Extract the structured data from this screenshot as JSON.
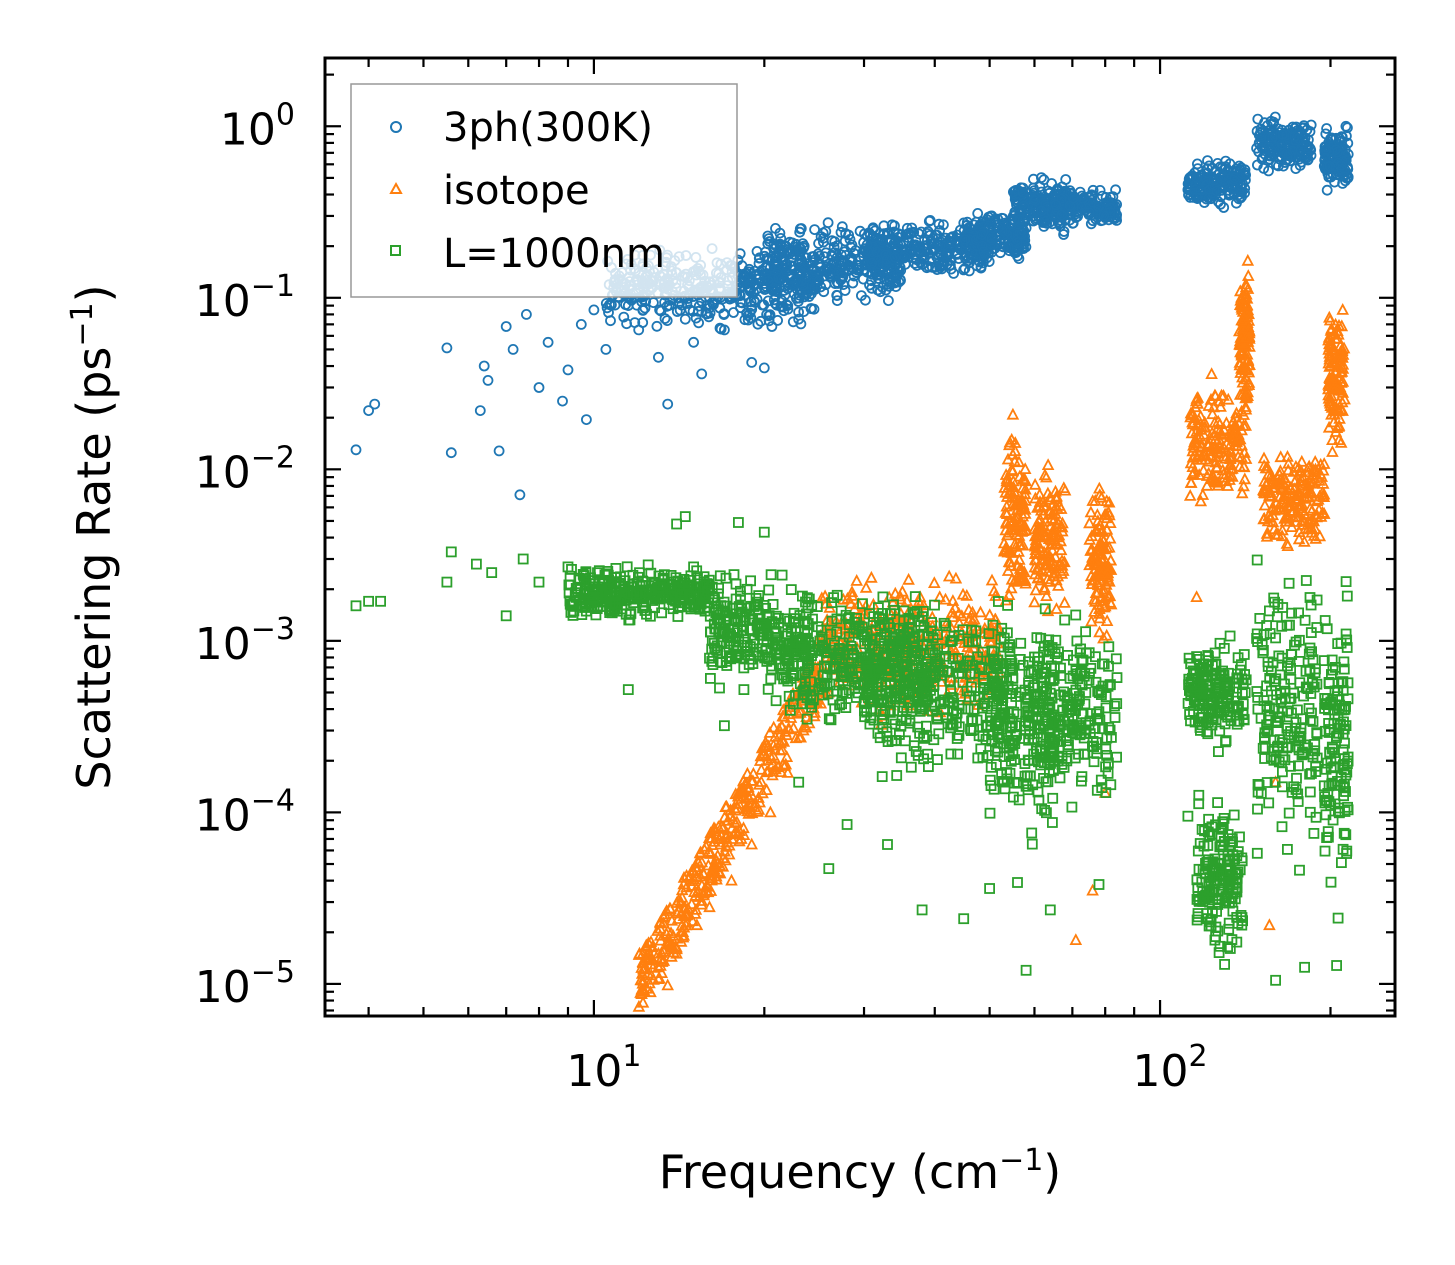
{
  "chart_data": {
    "type": "scatter",
    "title": "",
    "xlabel": "Frequency (cm",
    "xlabel_sup": "−1",
    "xlabel_end": ")",
    "ylabel": "Scattering Rate (ps",
    "ylabel_sup": "−1",
    "ylabel_end": ")",
    "xscale": "log",
    "yscale": "log",
    "xlim": [
      3.35,
      260
    ],
    "ylim": [
      6.5e-06,
      2.5
    ],
    "x_ticks": [
      {
        "value": 10,
        "base": "10",
        "exp": "1"
      },
      {
        "value": 100,
        "base": "10",
        "exp": "2"
      }
    ],
    "y_ticks": [
      {
        "value": 1,
        "base": "10",
        "exp": "0"
      },
      {
        "value": 0.1,
        "base": "10",
        "exp": "−1"
      },
      {
        "value": 0.01,
        "base": "10",
        "exp": "−2"
      },
      {
        "value": 0.001,
        "base": "10",
        "exp": "−3"
      },
      {
        "value": 0.0001,
        "base": "10",
        "exp": "−4"
      },
      {
        "value": 1e-05,
        "base": "10",
        "exp": "−5"
      }
    ],
    "legend_position": "top-left",
    "series": [
      {
        "name": "3ph(300K)",
        "marker": "circle",
        "color": "#1f77b4",
        "points": [
          [
            3.8,
            0.013
          ],
          [
            4.0,
            0.022
          ],
          [
            4.1,
            0.024
          ],
          [
            5.5,
            0.051
          ],
          [
            5.6,
            0.0125
          ],
          [
            6.3,
            0.022
          ],
          [
            6.4,
            0.04
          ],
          [
            6.5,
            0.033
          ],
          [
            6.8,
            0.0128
          ],
          [
            7.0,
            0.068
          ],
          [
            7.2,
            0.05
          ],
          [
            7.4,
            0.0071
          ],
          [
            7.6,
            0.08
          ],
          [
            8.0,
            0.03
          ],
          [
            8.3,
            0.055
          ],
          [
            8.8,
            0.025
          ],
          [
            9.0,
            0.038
          ],
          [
            9.5,
            0.07
          ],
          [
            9.7,
            0.0195
          ],
          [
            10.0,
            0.085
          ],
          [
            10.5,
            0.05
          ],
          [
            11.0,
            0.12
          ],
          [
            11.5,
            0.09
          ],
          [
            12.0,
            0.065
          ],
          [
            12.5,
            0.11
          ],
          [
            13.0,
            0.045
          ],
          [
            13.5,
            0.024
          ],
          [
            14.0,
            0.14
          ],
          [
            14.5,
            0.075
          ],
          [
            15.0,
            0.055
          ],
          [
            15.5,
            0.036
          ],
          [
            16.0,
            0.1
          ],
          [
            16.5,
            0.16
          ],
          [
            17.0,
            0.065
          ],
          [
            18.0,
            0.12
          ],
          [
            19.0,
            0.042
          ],
          [
            20.0,
            0.039
          ],
          [
            20.5,
            0.15
          ],
          [
            21.0,
            0.2
          ],
          [
            22.0,
            0.09
          ],
          [
            23.0,
            0.075
          ]
        ],
        "bands": [
          {
            "x": [
              10.5,
              25
            ],
            "y": [
              0.06,
              0.22
            ]
          },
          {
            "x": [
              20,
              35
            ],
            "y": [
              0.08,
              0.3
            ]
          },
          {
            "x": [
              30,
              50
            ],
            "y": [
              0.12,
              0.3
            ]
          },
          {
            "x": [
              45,
              58
            ],
            "y": [
              0.15,
              0.35
            ]
          },
          {
            "x": [
              55,
              70
            ],
            "y": [
              0.22,
              0.55
            ]
          },
          {
            "x": [
              65,
              84
            ],
            "y": [
              0.25,
              0.45
            ]
          },
          {
            "x": [
              112,
              142
            ],
            "y": [
              0.32,
              0.7
            ]
          },
          {
            "x": [
              148,
              185
            ],
            "y": [
              0.5,
              1.2
            ]
          },
          {
            "x": [
              195,
              215
            ],
            "y": [
              0.38,
              1.1
            ]
          }
        ]
      },
      {
        "name": "isotope",
        "marker": "triangle",
        "color": "#ff7f0e",
        "points": [
          [
            12.1,
            1.05e-05
          ],
          [
            13.0,
            1.25e-05
          ],
          [
            13.5,
            9.8e-06
          ],
          [
            14.0,
            1.5e-05
          ],
          [
            15.2,
            2.2e-05
          ],
          [
            16.0,
            2.8e-05
          ],
          [
            17.5,
            4e-05
          ],
          [
            19.0,
            6.5e-05
          ],
          [
            20.5,
            0.0001
          ],
          [
            22.0,
            0.00017
          ],
          [
            24.0,
            0.00033
          ],
          [
            26.0,
            0.0005
          ],
          [
            71.0,
            1.8e-05
          ],
          [
            76.0,
            3.5e-05
          ],
          [
            80.0,
            0.00013
          ],
          [
            156.0,
            2.2e-05
          ],
          [
            160.0,
            0.00015
          ],
          [
            116.0,
            0.0018
          ],
          [
            118.0,
            0.0065
          ]
        ],
        "bands": [
          {
            "x": [
              12,
              25
            ],
            "y": [
              1e-05,
              0.0006
            ],
            "trend": true
          },
          {
            "x": [
              25,
              52
            ],
            "y": [
              0.0003,
              0.003
            ]
          },
          {
            "x": [
              53,
              58
            ],
            "y": [
              0.0012,
              0.025
            ]
          },
          {
            "x": [
              60,
              68
            ],
            "y": [
              0.001,
              0.015
            ]
          },
          {
            "x": [
              75,
              82
            ],
            "y": [
              0.0008,
              0.011
            ]
          },
          {
            "x": [
              113,
              142
            ],
            "y": [
              0.005,
              0.04
            ]
          },
          {
            "x": [
              138,
              144
            ],
            "y": [
              0.02,
              0.2
            ]
          },
          {
            "x": [
              152,
              195
            ],
            "y": [
              0.003,
              0.015
            ]
          },
          {
            "x": [
              198,
              212
            ],
            "y": [
              0.01,
              0.12
            ]
          }
        ]
      },
      {
        "name": "L=1000nm",
        "marker": "square",
        "color": "#2ca02c",
        "points": [
          [
            3.8,
            0.0016
          ],
          [
            4.0,
            0.0017
          ],
          [
            4.2,
            0.0017
          ],
          [
            5.5,
            0.0022
          ],
          [
            5.6,
            0.0033
          ],
          [
            6.2,
            0.0028
          ],
          [
            6.6,
            0.0025
          ],
          [
            7.0,
            0.0014
          ],
          [
            7.5,
            0.003
          ],
          [
            8.0,
            0.0022
          ],
          [
            9.0,
            0.0027
          ],
          [
            10.0,
            0.0018
          ],
          [
            11.5,
            0.00052
          ],
          [
            12.5,
            0.0021
          ],
          [
            14.0,
            0.0048
          ],
          [
            14.5,
            0.0053
          ],
          [
            15.0,
            0.0027
          ],
          [
            17.0,
            0.00032
          ],
          [
            18.0,
            0.0049
          ],
          [
            20.0,
            0.0043
          ],
          [
            23.0,
            0.00015
          ],
          [
            26.0,
            4.7e-05
          ],
          [
            28.0,
            8.5e-05
          ],
          [
            33.0,
            6.5e-05
          ],
          [
            38.0,
            2.7e-05
          ],
          [
            45.0,
            2.4e-05
          ],
          [
            50.0,
            3.6e-05
          ],
          [
            56.0,
            3.9e-05
          ],
          [
            58.0,
            1.2e-05
          ],
          [
            64.0,
            2.7e-05
          ],
          [
            78.0,
            3.8e-05
          ],
          [
            112.0,
            9.5e-05
          ],
          [
            125.0,
            1.8e-05
          ],
          [
            130.0,
            1.3e-05
          ],
          [
            160.0,
            1.05e-05
          ],
          [
            180.0,
            1.25e-05
          ],
          [
            205.0,
            1.28e-05
          ]
        ],
        "bands": [
          {
            "x": [
              9,
              16
            ],
            "y": [
              0.0012,
              0.003
            ]
          },
          {
            "x": [
              16,
              24
            ],
            "y": [
              0.0004,
              0.003
            ]
          },
          {
            "x": [
              22,
              40
            ],
            "y": [
              0.00025,
              0.0025
            ]
          },
          {
            "x": [
              30,
              55
            ],
            "y": [
              0.00012,
              0.0022
            ]
          },
          {
            "x": [
              50,
              65
            ],
            "y": [
              5e-05,
              0.0022
            ]
          },
          {
            "x": [
              60,
              84
            ],
            "y": [
              8e-05,
              0.0018
            ]
          },
          {
            "x": [
              112,
              142
            ],
            "y": [
              0.0002,
              0.0012
            ]
          },
          {
            "x": [
              116,
              140
            ],
            "y": [
              1.2e-05,
              0.00015
            ]
          },
          {
            "x": [
              148,
              190
            ],
            "y": [
              4e-05,
              0.004
            ]
          },
          {
            "x": [
              195,
              215
            ],
            "y": [
              2e-05,
              0.003
            ]
          }
        ]
      }
    ]
  }
}
